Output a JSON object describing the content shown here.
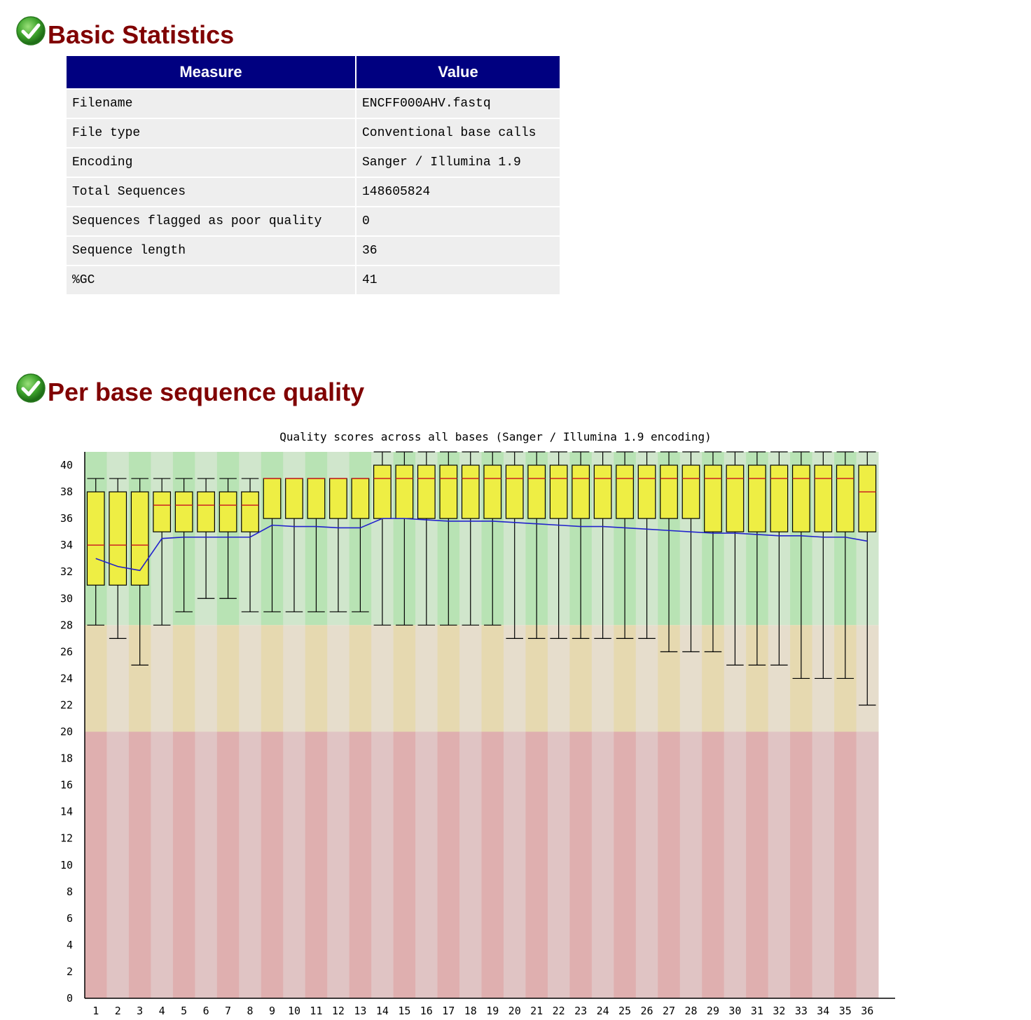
{
  "sections": {
    "basic_statistics": {
      "title": "Basic Statistics",
      "status_icon": "pass-check-icon",
      "table": {
        "headers": [
          "Measure",
          "Value"
        ],
        "rows": [
          {
            "measure": "Filename",
            "value": "ENCFF000AHV.fastq"
          },
          {
            "measure": "File type",
            "value": "Conventional base calls"
          },
          {
            "measure": "Encoding",
            "value": "Sanger / Illumina 1.9"
          },
          {
            "measure": "Total Sequences",
            "value": "148605824"
          },
          {
            "measure": "Sequences flagged as poor quality",
            "value": "0"
          },
          {
            "measure": "Sequence length",
            "value": "36"
          },
          {
            "measure": "%GC",
            "value": "41"
          }
        ]
      }
    },
    "per_base_quality": {
      "title": "Per base sequence quality",
      "status_icon": "pass-check-icon"
    }
  },
  "colors": {
    "heading": "#800000",
    "table_header": "#000080",
    "table_cell": "#eeeeee",
    "box_fill": "#eeee44",
    "median_line": "#cc2222",
    "mean_line": "#2222cc",
    "zone_good": [
      "#b8e3b4",
      "#d0e6cc"
    ],
    "zone_ok": [
      "#e6d9b0",
      "#e6ddcc"
    ],
    "zone_bad": [
      "#dfafaf",
      "#e0c4c4"
    ]
  },
  "chart_data": {
    "type": "box",
    "title": "Quality scores across all bases (Sanger / Illumina 1.9 encoding)",
    "xlabel": "",
    "ylabel": "",
    "ylim": [
      0,
      41
    ],
    "y_ticks": [
      0,
      2,
      4,
      6,
      8,
      10,
      12,
      14,
      16,
      18,
      20,
      22,
      24,
      26,
      28,
      30,
      32,
      34,
      36,
      38,
      40
    ],
    "zones": [
      {
        "from": 28,
        "to": 41,
        "kind": "good"
      },
      {
        "from": 20,
        "to": 28,
        "kind": "ok"
      },
      {
        "from": 0,
        "to": 20,
        "kind": "bad"
      }
    ],
    "categories": [
      "1",
      "2",
      "3",
      "4",
      "5",
      "6",
      "7",
      "8",
      "9",
      "10",
      "11",
      "12",
      "13",
      "14",
      "15",
      "16",
      "17",
      "18",
      "19",
      "20",
      "21",
      "22",
      "23",
      "24",
      "25",
      "26",
      "27",
      "28",
      "29",
      "30",
      "31",
      "32",
      "33",
      "34",
      "35",
      "36"
    ],
    "lower_whisker": [
      28,
      27,
      25,
      28,
      29,
      30,
      30,
      29,
      29,
      29,
      29,
      29,
      29,
      28,
      28,
      28,
      28,
      28,
      28,
      27,
      27,
      27,
      27,
      27,
      27,
      27,
      26,
      26,
      26,
      25,
      25,
      25,
      24,
      24,
      24,
      22
    ],
    "q1": [
      31,
      31,
      31,
      35,
      35,
      35,
      35,
      35,
      36,
      36,
      36,
      36,
      36,
      36,
      36,
      36,
      36,
      36,
      36,
      36,
      36,
      36,
      36,
      36,
      36,
      36,
      36,
      36,
      35,
      35,
      35,
      35,
      35,
      35,
      35,
      35
    ],
    "median": [
      34,
      34,
      34,
      37,
      37,
      37,
      37,
      37,
      39,
      39,
      39,
      39,
      39,
      39,
      39,
      39,
      39,
      39,
      39,
      39,
      39,
      39,
      39,
      39,
      39,
      39,
      39,
      39,
      39,
      39,
      39,
      39,
      39,
      39,
      39,
      38
    ],
    "q3": [
      38,
      38,
      38,
      38,
      38,
      38,
      38,
      38,
      39,
      39,
      39,
      39,
      39,
      40,
      40,
      40,
      40,
      40,
      40,
      40,
      40,
      40,
      40,
      40,
      40,
      40,
      40,
      40,
      40,
      40,
      40,
      40,
      40,
      40,
      40,
      40
    ],
    "upper_whisker": [
      39,
      39,
      39,
      39,
      39,
      39,
      39,
      39,
      39,
      39,
      39,
      39,
      39,
      41,
      41,
      41,
      41,
      41,
      41,
      41,
      41,
      41,
      41,
      41,
      41,
      41,
      41,
      41,
      41,
      41,
      41,
      41,
      41,
      41,
      41,
      41
    ],
    "mean": [
      33.0,
      32.4,
      32.1,
      34.5,
      34.6,
      34.6,
      34.6,
      34.6,
      35.5,
      35.4,
      35.4,
      35.3,
      35.3,
      36.0,
      36.0,
      35.9,
      35.8,
      35.8,
      35.8,
      35.7,
      35.6,
      35.5,
      35.4,
      35.4,
      35.3,
      35.2,
      35.1,
      35.0,
      34.9,
      34.9,
      34.8,
      34.7,
      34.7,
      34.6,
      34.6,
      34.3
    ]
  }
}
